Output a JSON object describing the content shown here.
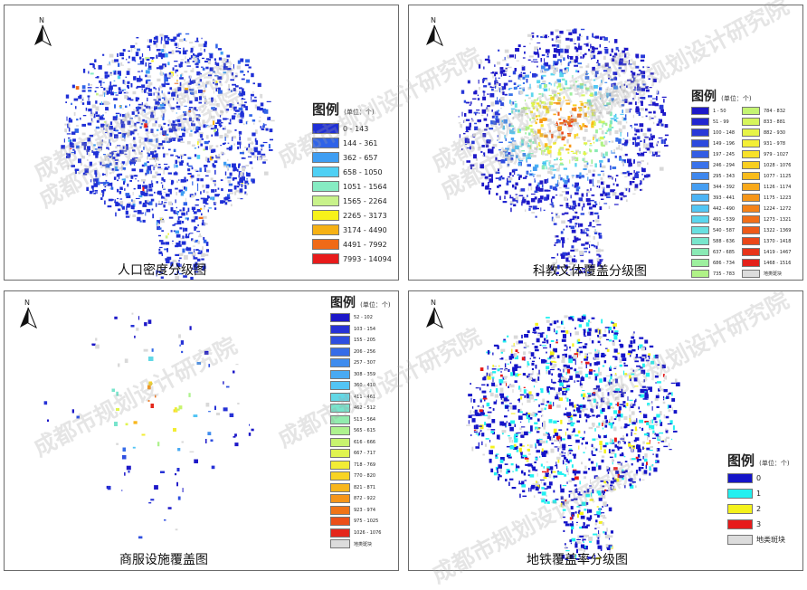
{
  "watermark": "成都市规划设计研究院",
  "north_label": "N",
  "panels": [
    {
      "title": "人口密度分级图",
      "legend_title": "图例",
      "legend_unit": "(单位：个)",
      "legend_items": [
        {
          "label": "0 - 143",
          "color": "#1f2fd6"
        },
        {
          "label": "144 - 361",
          "color": "#2f63e8"
        },
        {
          "label": "362 - 657",
          "color": "#3f9ef3"
        },
        {
          "label": "658 - 1050",
          "color": "#4fd0f4"
        },
        {
          "label": "1051 - 1564",
          "color": "#86ecc3"
        },
        {
          "label": "1565 - 2264",
          "color": "#c8f28a"
        },
        {
          "label": "2265 - 3173",
          "color": "#f7f21a"
        },
        {
          "label": "3174 - 4490",
          "color": "#f6b114"
        },
        {
          "label": "4491 - 7992",
          "color": "#f06a17"
        },
        {
          "label": "7993 - 14094",
          "color": "#e81b1b"
        }
      ]
    },
    {
      "title": "科教文体覆盖分级图",
      "legend_title": "图例",
      "legend_unit": "(单位：个)",
      "legend_col1": [
        {
          "label": "1 - 50",
          "color": "#1d18c8"
        },
        {
          "label": "51 - 99",
          "color": "#2226d0"
        },
        {
          "label": "100 - 148",
          "color": "#2838d8"
        },
        {
          "label": "149 - 196",
          "color": "#2d4ade"
        },
        {
          "label": "197 - 245",
          "color": "#335de4"
        },
        {
          "label": "246 - 294",
          "color": "#3a72ea"
        },
        {
          "label": "295 - 343",
          "color": "#3f88ee"
        },
        {
          "label": "344 - 392",
          "color": "#459ef2"
        },
        {
          "label": "393 - 441",
          "color": "#4bb3f4"
        },
        {
          "label": "442 - 490",
          "color": "#52c6f4"
        },
        {
          "label": "491 - 539",
          "color": "#5bd6ee"
        },
        {
          "label": "540 - 587",
          "color": "#68e0e0"
        },
        {
          "label": "588 - 636",
          "color": "#78e6cc"
        },
        {
          "label": "637 - 685",
          "color": "#8aeab5"
        },
        {
          "label": "686 - 734",
          "color": "#9def9e"
        },
        {
          "label": "735 - 783",
          "color": "#b0f287"
        }
      ],
      "legend_col2": [
        {
          "label": "784 - 832",
          "color": "#c4f472"
        },
        {
          "label": "833 - 881",
          "color": "#d6f55c"
        },
        {
          "label": "882 - 930",
          "color": "#e6f448"
        },
        {
          "label": "931 - 978",
          "color": "#f3ef36"
        },
        {
          "label": "979 - 1027",
          "color": "#f8e128"
        },
        {
          "label": "1028 - 1076",
          "color": "#f9cf20"
        },
        {
          "label": "1077 - 1125",
          "color": "#f9bc1c"
        },
        {
          "label": "1126 - 1174",
          "color": "#f8a91a"
        },
        {
          "label": "1175 - 1223",
          "color": "#f69618"
        },
        {
          "label": "1224 - 1272",
          "color": "#f48218"
        },
        {
          "label": "1273 - 1321",
          "color": "#f16e18"
        },
        {
          "label": "1322 - 1369",
          "color": "#ee5a18"
        },
        {
          "label": "1370 - 1418",
          "color": "#eb4719"
        },
        {
          "label": "1419 - 1467",
          "color": "#e8341a"
        },
        {
          "label": "1468 - 1516",
          "color": "#e4211b"
        }
      ],
      "legend_extra": {
        "label": "地类斑块",
        "color": "#dcdcdc"
      }
    },
    {
      "title": "商服设施覆盖图",
      "legend_title": "图例",
      "legend_unit": "(单位：个)",
      "legend_items": [
        {
          "label": "52 - 102",
          "color": "#1d18c8"
        },
        {
          "label": "103 - 154",
          "color": "#2632d6"
        },
        {
          "label": "155 - 205",
          "color": "#2e4ee0"
        },
        {
          "label": "206 - 256",
          "color": "#366ce8"
        },
        {
          "label": "257 - 307",
          "color": "#3f8cee"
        },
        {
          "label": "308 - 359",
          "color": "#48aaf3"
        },
        {
          "label": "360 - 410",
          "color": "#52c4f4"
        },
        {
          "label": "411 - 461",
          "color": "#62d8e6"
        },
        {
          "label": "462 - 512",
          "color": "#78e4cc"
        },
        {
          "label": "513 - 564",
          "color": "#92ecae"
        },
        {
          "label": "565 - 615",
          "color": "#aef28e"
        },
        {
          "label": "616 - 666",
          "color": "#c8f46e"
        },
        {
          "label": "667 - 717",
          "color": "#e0f450"
        },
        {
          "label": "718 - 769",
          "color": "#f2ec34"
        },
        {
          "label": "770 - 820",
          "color": "#f8d424"
        },
        {
          "label": "821 - 871",
          "color": "#f8b61c"
        },
        {
          "label": "872 - 922",
          "color": "#f5951a"
        },
        {
          "label": "923 - 974",
          "color": "#f07418"
        },
        {
          "label": "975 - 1025",
          "color": "#eb4f19"
        },
        {
          "label": "1026 - 1076",
          "color": "#e4261b"
        }
      ],
      "legend_extra": {
        "label": "地类斑块",
        "color": "#dcdcdc"
      }
    },
    {
      "title": "地铁覆盖率分级图",
      "legend_title": "图例",
      "legend_unit": "(单位：个)",
      "legend_items": [
        {
          "label": "0",
          "color": "#1414c8"
        },
        {
          "label": "1",
          "color": "#22f0f0"
        },
        {
          "label": "2",
          "color": "#f4f21c"
        },
        {
          "label": "3",
          "color": "#e61a1a"
        },
        {
          "label": "地类斑块",
          "color": "#dcdcdc"
        }
      ]
    }
  ]
}
